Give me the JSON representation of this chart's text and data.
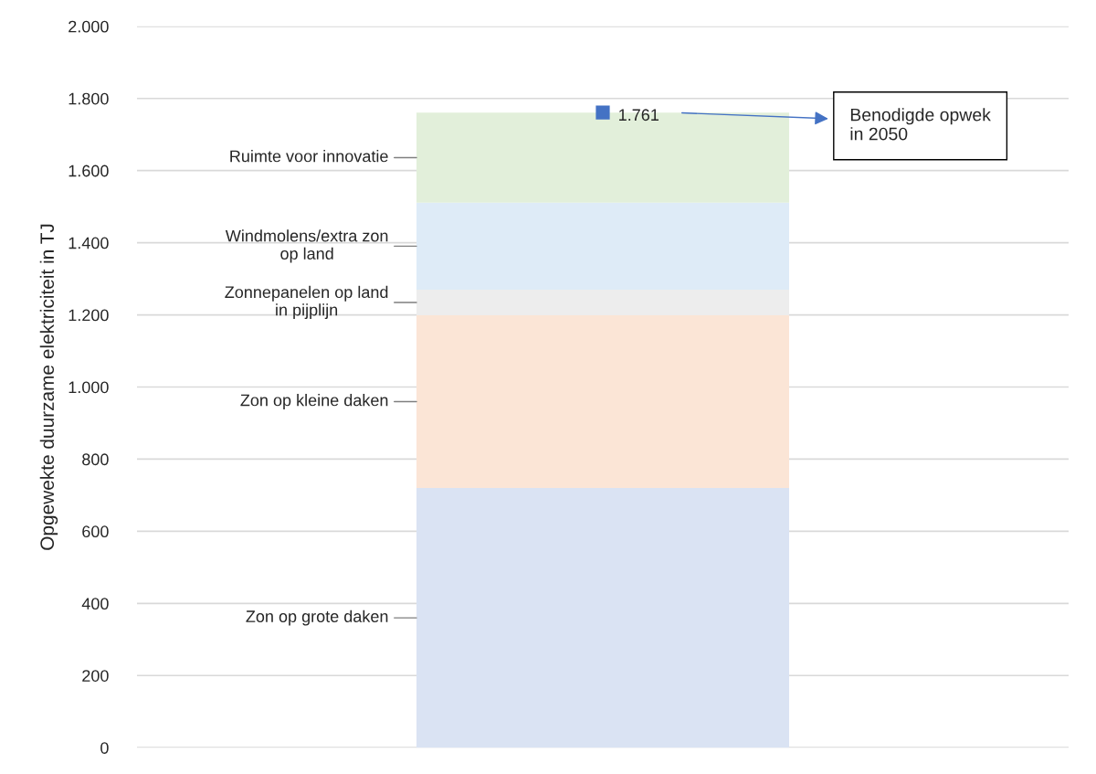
{
  "chart_data": {
    "type": "bar",
    "stacked": true,
    "ylabel": "Opgewekte duurzame elektriciteit in TJ",
    "categories": [
      null
    ],
    "series": [
      {
        "name": "Zon op grote daken",
        "color": "#dae3f3",
        "values": [
          720
        ]
      },
      {
        "name": "Zon op kleine daken",
        "color": "#fbe5d6",
        "values": [
          479
        ]
      },
      {
        "name": "Zonnepanelen op land\nin pijplijn",
        "color": "#ededed",
        "values": [
          71
        ]
      },
      {
        "name": "Windmolens/extra zon\nop land",
        "color": "#deebf7",
        "values": [
          241
        ]
      },
      {
        "name": "Ruimte voor innovatie",
        "color": "#e2efda",
        "values": [
          250
        ]
      },
      {
        "type": "scatter",
        "color": "#4472c4",
        "marker": "square",
        "values": [
          1761
        ],
        "value_labels": [
          "1.761"
        ]
      }
    ],
    "ylim": [
      0,
      2000
    ],
    "yticks": [
      {
        "value": 0,
        "label": "0"
      },
      {
        "value": 200,
        "label": "200"
      },
      {
        "value": 400,
        "label": "400"
      },
      {
        "value": 600,
        "label": "600"
      },
      {
        "value": 800,
        "label": "800"
      },
      {
        "value": 1000,
        "label": "1.000"
      },
      {
        "value": 1200,
        "label": "1.200"
      },
      {
        "value": 1400,
        "label": "1.400"
      },
      {
        "value": 1600,
        "label": "1.600"
      },
      {
        "value": 1800,
        "label": "1.800"
      },
      {
        "value": 2000,
        "label": "2.000"
      }
    ],
    "annotations": [
      "Benodigde opwek\nin 2050"
    ],
    "grid": "y",
    "legend": false
  }
}
